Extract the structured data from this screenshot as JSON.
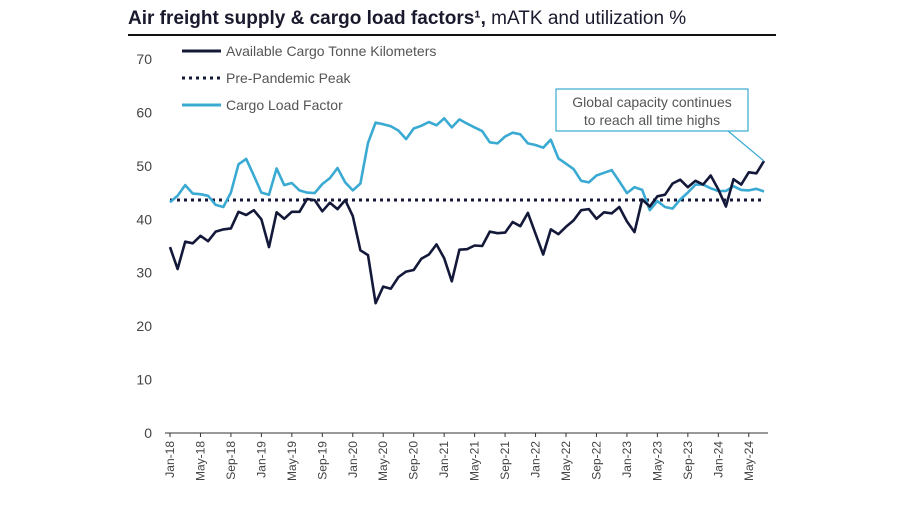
{
  "header": {
    "title_bold": "Air freight supply & cargo load factors¹,",
    "title_rest": " mATK and utilization %"
  },
  "chart_data": {
    "type": "line",
    "title": "Air freight supply & cargo load factors¹, mATK and utilization %",
    "ylim": [
      0,
      70
    ],
    "y_ticks": [
      0,
      10,
      20,
      30,
      40,
      50,
      60,
      70
    ],
    "x_tick_labels": [
      "Jan-18",
      "May-18",
      "Sep-18",
      "Jan-19",
      "May-19",
      "Sep-19",
      "Jan-20",
      "May-20",
      "Sep-20",
      "Jan-21",
      "May-21",
      "Sep-21",
      "Jan-22",
      "May-22",
      "Sep-22",
      "Jan-23",
      "May-23",
      "Sep-23",
      "Jan-24",
      "May-24"
    ],
    "grid": false,
    "legend_position": "top-left",
    "series": [
      {
        "name": "Available Cargo Tonne Kilometers",
        "color": "#14193a",
        "style": "solid",
        "values": [
          34.8,
          30.7,
          35.8,
          35.5,
          36.9,
          35.9,
          37.7,
          38.1,
          38.3,
          41.4,
          40.8,
          41.7,
          40.0,
          34.8,
          41.3,
          40.1,
          41.4,
          41.4,
          43.8,
          43.6,
          41.5,
          43.1,
          41.9,
          43.6,
          40.6,
          34.2,
          33.3,
          24.3,
          27.4,
          27.0,
          29.2,
          30.2,
          30.5,
          32.6,
          33.4,
          35.3,
          32.7,
          28.4,
          34.3,
          34.4,
          35.1,
          35.0,
          37.7,
          37.4,
          37.5,
          39.5,
          38.7,
          41.2,
          37.3,
          33.4,
          38.1,
          37.2,
          38.6,
          39.8,
          41.7,
          41.9,
          40.1,
          41.3,
          41.1,
          42.3,
          39.6,
          37.6,
          43.7,
          42.4,
          44.3,
          44.6,
          46.7,
          47.4,
          46.0,
          47.2,
          46.5,
          48.2,
          45.6,
          42.4,
          47.5,
          46.5,
          48.8,
          48.6,
          50.9
        ]
      },
      {
        "name": "Pre-Pandemic Peak",
        "color": "#14193a",
        "style": "dotted",
        "values": [
          43.6
        ]
      },
      {
        "name": "Cargo Load Factor",
        "color": "#3aaad2",
        "style": "solid",
        "values": [
          43.2,
          44.4,
          46.4,
          44.8,
          44.7,
          44.4,
          42.7,
          42.3,
          45.0,
          50.3,
          51.3,
          48.2,
          45.0,
          44.6,
          49.5,
          46.4,
          46.8,
          45.4,
          45.0,
          44.9,
          46.6,
          47.7,
          49.6,
          46.9,
          45.4,
          46.7,
          54.3,
          58.1,
          57.8,
          57.4,
          56.6,
          55.0,
          57.0,
          57.5,
          58.2,
          57.6,
          58.9,
          57.2,
          58.7,
          57.9,
          57.2,
          56.5,
          54.4,
          54.2,
          55.5,
          56.2,
          55.9,
          54.2,
          53.9,
          53.4,
          54.9,
          51.4,
          50.4,
          49.4,
          47.2,
          46.9,
          48.2,
          48.7,
          49.2,
          47.1,
          44.9,
          46.0,
          45.5,
          41.7,
          43.4,
          42.3,
          42.0,
          43.7,
          45.0,
          46.5,
          46.5,
          45.8,
          45.3,
          45.3,
          46.2,
          45.5,
          45.4,
          45.7,
          45.2
        ]
      }
    ],
    "annotation": {
      "lines": [
        "Global capacity continues",
        "to reach all time highs"
      ]
    }
  }
}
